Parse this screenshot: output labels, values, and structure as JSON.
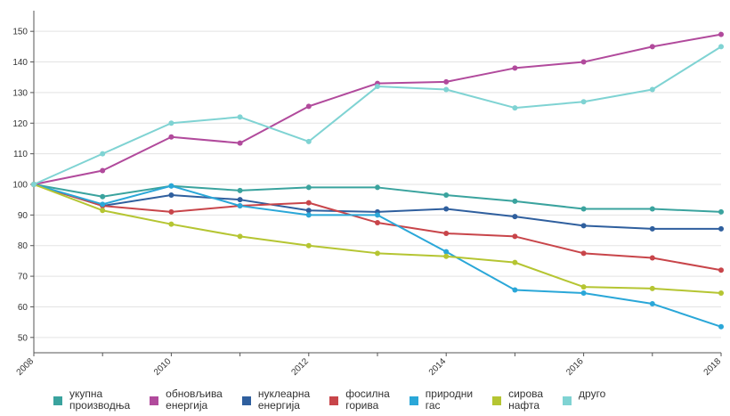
{
  "chart_data": {
    "type": "line",
    "title": "",
    "xlabel": "",
    "ylabel": "",
    "x": [
      2008,
      2009,
      2010,
      2011,
      2012,
      2013,
      2014,
      2015,
      2016,
      2017,
      2018
    ],
    "xlim": [
      2008,
      2018
    ],
    "ylim": [
      45,
      155
    ],
    "y_ticks": [
      50,
      60,
      70,
      80,
      90,
      100,
      110,
      120,
      130,
      140,
      150
    ],
    "x_tick_labels": [
      "2008",
      "2010",
      "2012",
      "2014",
      "2016",
      "2018"
    ],
    "grid": true,
    "legend_position": "bottom",
    "series": [
      {
        "name": "укупна\nпроизводња",
        "color": "#3aa39e",
        "values": [
          100,
          96,
          99.5,
          98,
          99,
          99,
          96.5,
          94.5,
          92,
          92,
          91
        ]
      },
      {
        "name": "обновљива\nенергија",
        "color": "#b14a9c",
        "values": [
          100,
          104.5,
          115.5,
          113.5,
          125.5,
          133,
          133.5,
          138,
          140,
          145,
          149
        ]
      },
      {
        "name": "нуклеарна\nенергија",
        "color": "#2f5f9e",
        "values": [
          100,
          93,
          96.5,
          95,
          91.5,
          91,
          92,
          89.5,
          86.5,
          85.5,
          85.5
        ]
      },
      {
        "name": "фосилна\nгорива",
        "color": "#c8454a",
        "values": [
          100,
          93,
          91,
          93,
          94,
          87.5,
          84,
          83,
          77.5,
          76,
          72
        ]
      },
      {
        "name": "природни\nгас",
        "color": "#2aa7d8",
        "values": [
          100,
          93.5,
          99.5,
          93,
          90,
          90,
          78,
          65.5,
          64.5,
          61,
          53.5
        ]
      },
      {
        "name": "сирова\nнафта",
        "color": "#b5c532",
        "values": [
          100,
          91.5,
          87,
          83,
          80,
          77.5,
          76.5,
          74.5,
          66.5,
          66,
          64.5
        ]
      },
      {
        "name": "друго",
        "color": "#7fd3d3",
        "values": [
          100,
          110,
          120,
          122,
          114,
          132,
          131,
          125,
          127,
          131,
          145
        ]
      }
    ]
  }
}
